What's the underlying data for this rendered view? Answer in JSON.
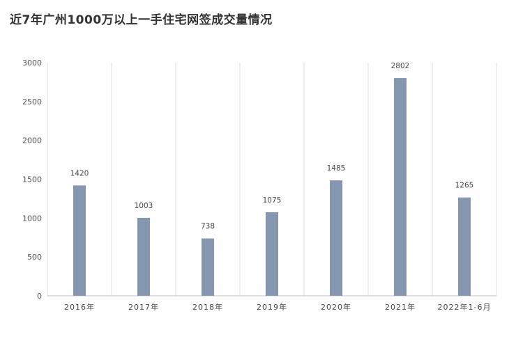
{
  "title": "近7年广州1000万以上一手住宅网签成交量情况",
  "chart_data": {
    "type": "bar",
    "title": "近7年广州1000万以上一手住宅网签成交量情况",
    "categories": [
      "2016年",
      "2017年",
      "2018年",
      "2019年",
      "2020年",
      "2021年",
      "2022年1-6月"
    ],
    "values": [
      1420,
      1003,
      738,
      1075,
      1485,
      2802,
      1265
    ],
    "data_labels": [
      "1420",
      "1003",
      "738",
      "1075",
      "1485",
      "2802",
      "1265"
    ],
    "xlabel": "",
    "ylabel": "",
    "ylim": [
      0,
      3000
    ],
    "yticks": [
      0,
      500,
      1000,
      1500,
      2000,
      2500,
      3000
    ],
    "ytick_labels": [
      "0",
      "500",
      "1000",
      "1500",
      "2000",
      "2500",
      "3000"
    ],
    "bar_color": "#8496b0",
    "grid": "vertical category separators",
    "legend": "none"
  }
}
